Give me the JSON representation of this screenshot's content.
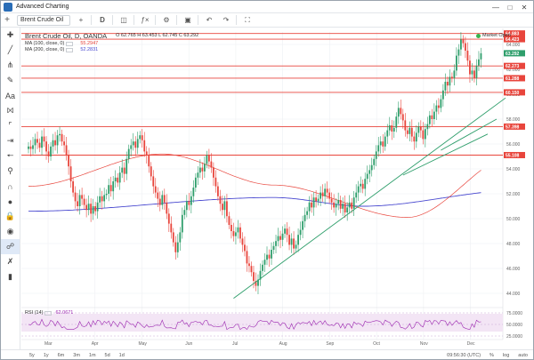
{
  "window": {
    "title": "Advanced Charting"
  },
  "toolbar": {
    "symbol": "Brent Crude Oil",
    "timeframe": "D",
    "icons": [
      "add-icon",
      "candles-icon",
      "indicator-icon",
      "settings-icon",
      "camera-icon",
      "undo-icon",
      "redo-icon",
      "fullscreen-icon"
    ]
  },
  "legend": {
    "title": "Brent Crude Oil, D, OANDA",
    "ohlc": "O 62.765  H 63.453  L 62.745  C 63.292",
    "ma100_label": "MA (100, close, 0)",
    "ma100_value": "55.2947",
    "ma200_label": "MA (200, close, 0)",
    "ma200_value": "52.2831"
  },
  "market_status": "Market Open",
  "rsi": {
    "label": "RSI (14)",
    "value": "62.0671"
  },
  "colors": {
    "level_red": "#e8453c",
    "ma100": "#e8453c",
    "ma200": "#4a4ad0",
    "trend": "#2e9e6b",
    "rsi": "#9c27b0",
    "candle_up": "#2e9e6b",
    "candle_down": "#e8453c"
  },
  "chart_data": {
    "type": "candlestick",
    "ylim": [
      43,
      65
    ],
    "y_ticks": [
      "44.000",
      "46.000",
      "48.000",
      "50.000",
      "52.000",
      "54.000",
      "56.000",
      "58.000",
      "60.000",
      "62.000",
      "64.000"
    ],
    "x_ticks": [
      "Mar",
      "Apr",
      "May",
      "Jun",
      "Jul",
      "Aug",
      "Sep",
      "Oct",
      "Nov",
      "Dec"
    ],
    "price_labels": [
      "64.883",
      "64.423",
      "63.292",
      "62.273",
      "61.288",
      "60.150",
      "57.398",
      "55.108"
    ],
    "levels": [
      64.883,
      64.423,
      62.273,
      61.288,
      60.15,
      57.398,
      55.108
    ],
    "current_price": 63.292,
    "closes": [
      55.8,
      55.6,
      55.9,
      56.4,
      56.1,
      55.7,
      56.6,
      56.2,
      55.4,
      55.0,
      55.8,
      56.3,
      55.9,
      56.7,
      56.8,
      56.2,
      55.9,
      55.1,
      54.2,
      53.0,
      52.1,
      51.4,
      51.0,
      51.9,
      51.6,
      51.1,
      50.7,
      51.2,
      50.4,
      51.0,
      50.6,
      51.3,
      51.8,
      51.4,
      51.9,
      52.0,
      52.7,
      52.2,
      53.0,
      53.3,
      52.9,
      53.7,
      54.1,
      53.6,
      54.8,
      55.6,
      55.9,
      56.2,
      55.7,
      56.4,
      56.7,
      56.3,
      55.4,
      55.1,
      54.2,
      53.4,
      52.6,
      52.1,
      51.6,
      51.1,
      51.9,
      51.3,
      50.4,
      49.6,
      48.9,
      48.1,
      47.3,
      48.1,
      48.9,
      50.3,
      50.7,
      51.4,
      51.1,
      51.8,
      52.5,
      53.3,
      53.7,
      54.1,
      53.8,
      54.4,
      55.1,
      54.6,
      54.1,
      53.3,
      52.6,
      51.8,
      51.2,
      50.7,
      51.4,
      50.2,
      49.5,
      49.0,
      48.6,
      48.9,
      49.3,
      48.4,
      47.9,
      47.4,
      46.4,
      46.2,
      45.7,
      45.0,
      44.6,
      45.1,
      45.8,
      46.3,
      46.7,
      47.1,
      46.8,
      47.5,
      47.8,
      48.2,
      48.6,
      48.3,
      48.8,
      49.2,
      48.7,
      47.9,
      48.4,
      47.6,
      47.9,
      48.7,
      49.1,
      49.8,
      50.3,
      50.6,
      51.3,
      50.9,
      51.7,
      51.4,
      51.6,
      52.1,
      51.8,
      52.4,
      52.1,
      51.6,
      51.3,
      50.9,
      51.2,
      51.5,
      50.8,
      51.2,
      50.5,
      50.9,
      51.3,
      50.8,
      51.7,
      52.1,
      52.6,
      52.8,
      52.4,
      53.2,
      53.6,
      53.9,
      54.3,
      54.8,
      55.4,
      55.9,
      56.2,
      55.8,
      56.6,
      57.1,
      57.5,
      57.0,
      57.3,
      58.2,
      58.9,
      58.4,
      57.9,
      57.1,
      56.8,
      57.3,
      56.6,
      56.2,
      56.9,
      57.4,
      57.1,
      56.4,
      57.2,
      57.6,
      58.3,
      58.0,
      58.6,
      59.1,
      58.9,
      59.6,
      60.3,
      61.0,
      60.7,
      61.4,
      61.3,
      61.9,
      63.1,
      63.6,
      64.4,
      64.1,
      63.5,
      62.7,
      61.6,
      61.9,
      61.3,
      62.3,
      62.8,
      63.29
    ],
    "ma100_endpoints": [
      [
        0,
        52.6
      ],
      [
        60,
        55.2
      ],
      [
        110,
        52.7
      ],
      [
        170,
        50.1
      ],
      [
        220,
        55.29
      ]
    ],
    "ma200_endpoints": [
      [
        0,
        50.6
      ],
      [
        110,
        51.7
      ],
      [
        150,
        51.0
      ],
      [
        220,
        52.28
      ]
    ],
    "trendlines": [
      [
        [
          92,
          43.6
        ],
        [
          214,
          59.7
        ]
      ],
      [
        [
          168,
          53.5
        ],
        [
          206,
          56.8
        ]
      ],
      [
        [
          185,
          55.5
        ],
        [
          210,
          58.0
        ]
      ]
    ],
    "rsi_ticks": [
      "25.0000",
      "50.0000",
      "75.0000"
    ]
  },
  "bottom_bar": {
    "ranges": [
      "5y",
      "1y",
      "6m",
      "3m",
      "1m",
      "5d",
      "1d"
    ],
    "clock": "09:56:30 (UTC)",
    "options": [
      "%",
      "log",
      "auto"
    ]
  }
}
